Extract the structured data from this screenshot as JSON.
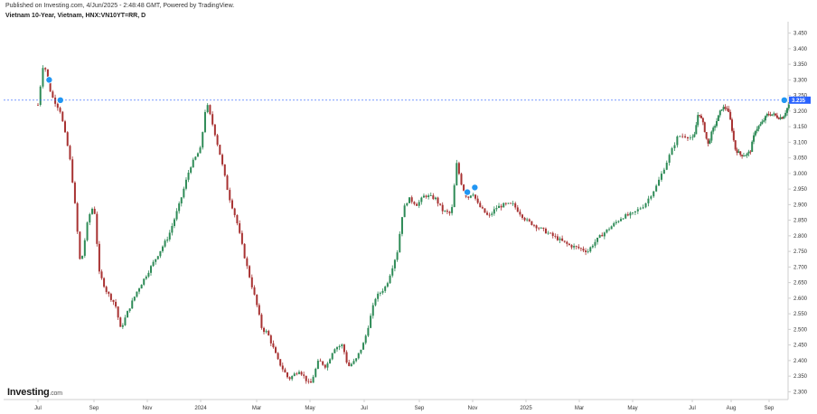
{
  "header": {
    "published": "Published on Investing.com, 4/Jun/2025 - 2:48:48 GMT, Powered by TradingView.",
    "title": "Vietnam 10-Year, Vietnam, HNX:VN10YT=RR, D"
  },
  "branding": {
    "logo_main": "Investing",
    "logo_domain": ".com"
  },
  "colors": {
    "up": "#2e8b57",
    "down": "#a83232",
    "current_line": "#2962ff",
    "marker": "#2196f3",
    "axis": "#cfcfcf"
  },
  "chart_data": {
    "type": "candlestick",
    "title": "Vietnam 10-Year, Vietnam, HNX:VN10YT=RR, D",
    "ylim": [
      2.275,
      3.475
    ],
    "y_ticks": [
      "3.450",
      "3.400",
      "3.350",
      "3.300",
      "3.250",
      "3.200",
      "3.150",
      "3.100",
      "3.050",
      "3.000",
      "2.950",
      "2.900",
      "2.850",
      "2.800",
      "2.750",
      "2.700",
      "2.650",
      "2.600",
      "2.550",
      "2.500",
      "2.450",
      "2.400",
      "2.350",
      "2.300"
    ],
    "x_ticks": [
      "Jul",
      "Sep",
      "Nov",
      "2024",
      "Mar",
      "May",
      "Jul",
      "Sep",
      "Nov",
      "2025",
      "Mar",
      "May",
      "Jul",
      "Aug",
      "Sep"
    ],
    "current_value": "3.235",
    "event_markers": 4,
    "path_points": [
      [
        0,
        3.22
      ],
      [
        0.05,
        3.36
      ],
      [
        0.12,
        3.25
      ],
      [
        0.2,
        3.2
      ],
      [
        0.28,
        3.06
      ],
      [
        0.32,
        2.94
      ],
      [
        0.38,
        2.7
      ],
      [
        0.45,
        2.86
      ],
      [
        0.5,
        2.9
      ],
      [
        0.55,
        2.68
      ],
      [
        0.62,
        2.62
      ],
      [
        0.7,
        2.58
      ],
      [
        0.75,
        2.5
      ],
      [
        0.82,
        2.56
      ],
      [
        0.9,
        2.62
      ],
      [
        1.0,
        2.68
      ],
      [
        1.1,
        2.74
      ],
      [
        1.2,
        2.8
      ],
      [
        1.3,
        2.9
      ],
      [
        1.4,
        3.02
      ],
      [
        1.5,
        3.08
      ],
      [
        1.55,
        3.23
      ],
      [
        1.62,
        3.14
      ],
      [
        1.68,
        3.05
      ],
      [
        1.75,
        2.93
      ],
      [
        1.82,
        2.85
      ],
      [
        1.9,
        2.72
      ],
      [
        1.95,
        2.65
      ],
      [
        2.0,
        2.58
      ],
      [
        2.05,
        2.5
      ],
      [
        2.1,
        2.49
      ],
      [
        2.2,
        2.4
      ],
      [
        2.3,
        2.34
      ],
      [
        2.4,
        2.37
      ],
      [
        2.5,
        2.32
      ],
      [
        2.58,
        2.4
      ],
      [
        2.65,
        2.38
      ],
      [
        2.72,
        2.44
      ],
      [
        2.8,
        2.45
      ],
      [
        2.85,
        2.38
      ],
      [
        2.92,
        2.4
      ],
      [
        3.0,
        2.46
      ],
      [
        3.1,
        2.6
      ],
      [
        3.2,
        2.64
      ],
      [
        3.3,
        2.75
      ],
      [
        3.35,
        2.88
      ],
      [
        3.4,
        2.92
      ],
      [
        3.48,
        2.9
      ],
      [
        3.55,
        2.93
      ],
      [
        3.65,
        2.92
      ],
      [
        3.72,
        2.88
      ],
      [
        3.8,
        2.87
      ],
      [
        3.85,
        3.03
      ],
      [
        3.9,
        2.96
      ],
      [
        3.95,
        2.92
      ],
      [
        4.0,
        2.94
      ],
      [
        4.05,
        2.9
      ],
      [
        4.1,
        2.88
      ],
      [
        4.15,
        2.86
      ],
      [
        4.22,
        2.89
      ],
      [
        4.3,
        2.9
      ],
      [
        4.38,
        2.9
      ],
      [
        4.45,
        2.87
      ],
      [
        4.5,
        2.85
      ],
      [
        4.6,
        2.83
      ],
      [
        4.7,
        2.81
      ],
      [
        4.8,
        2.79
      ],
      [
        4.9,
        2.77
      ],
      [
        5.0,
        2.76
      ],
      [
        5.08,
        2.75
      ],
      [
        5.12,
        2.77
      ],
      [
        5.2,
        2.8
      ],
      [
        5.3,
        2.83
      ],
      [
        5.4,
        2.86
      ],
      [
        5.5,
        2.87
      ],
      [
        5.6,
        2.9
      ],
      [
        5.7,
        2.96
      ],
      [
        5.8,
        3.05
      ],
      [
        5.88,
        3.12
      ],
      [
        5.95,
        3.12
      ],
      [
        6.02,
        3.11
      ],
      [
        6.08,
        3.2
      ],
      [
        6.15,
        3.15
      ],
      [
        6.2,
        3.09
      ],
      [
        6.25,
        3.13
      ],
      [
        6.3,
        3.16
      ],
      [
        6.38,
        3.21
      ],
      [
        6.45,
        3.21
      ],
      [
        6.5,
        3.16
      ],
      [
        6.55,
        3.08
      ],
      [
        6.62,
        3.06
      ],
      [
        6.7,
        3.06
      ],
      [
        6.75,
        3.07
      ],
      [
        6.82,
        3.14
      ],
      [
        6.9,
        3.16
      ],
      [
        6.98,
        3.19
      ],
      [
        7.05,
        3.19
      ],
      [
        7.12,
        3.18
      ],
      [
        7.18,
        3.18
      ],
      [
        7.22,
        3.2
      ],
      [
        7.28,
        3.23
      ]
    ]
  }
}
